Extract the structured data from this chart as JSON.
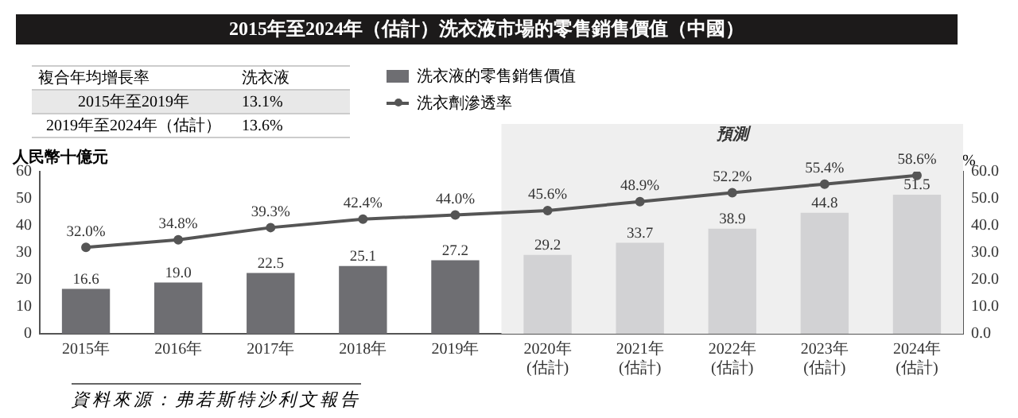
{
  "chart_data": [
    {
      "type": "bar",
      "title": "2015年至2024年（估計）洗衣液市場的零售銷售價值（中國）",
      "categories": [
        "2015年",
        "2016年",
        "2017年",
        "2018年",
        "2019年",
        "2020年\n(估計)",
        "2021年\n(估計)",
        "2022年\n(估計)",
        "2023年\n(估計)",
        "2024年\n(估計)"
      ],
      "series": [
        {
          "name": "洗衣液的零售銷售價值",
          "color": "#6e6e72",
          "colors": [
            "#6e6e72",
            "#6e6e72",
            "#6e6e72",
            "#6e6e72",
            "#6e6e72",
            "#d2d2d4",
            "#d2d2d4",
            "#d2d2d4",
            "#d2d2d4",
            "#d2d2d4"
          ],
          "values": [
            16.6,
            19.0,
            22.5,
            25.1,
            27.2,
            29.2,
            33.7,
            38.9,
            44.8,
            51.5
          ],
          "value_labels": [
            "16.6",
            "19.0",
            "22.5",
            "25.1",
            "27.2",
            "29.2",
            "33.7",
            "38.9",
            "44.8",
            "51.5"
          ]
        },
        {
          "name": "洗衣劑滲透率",
          "type": "line",
          "axis": "y2",
          "color": "#555555",
          "marker": "circle",
          "values": [
            32.0,
            34.8,
            39.3,
            42.4,
            44.0,
            45.6,
            48.9,
            52.2,
            55.4,
            58.6
          ],
          "value_labels": [
            "32.0%",
            "34.8%",
            "39.3%",
            "42.4%",
            "44.0%",
            "45.6%",
            "48.9%",
            "52.2%",
            "55.4%",
            "58.6%"
          ]
        }
      ],
      "ylabel": "人民幣十億元",
      "y2label": "%",
      "ylim": [
        0,
        60
      ],
      "yticks": [
        0,
        10,
        20,
        30,
        40,
        50,
        60
      ],
      "y2lim": [
        0,
        60
      ],
      "y2ticks": [
        {
          "value": 0,
          "label": "0.0"
        },
        {
          "value": 10,
          "label": "10.0"
        },
        {
          "value": 20,
          "label": "20.0"
        },
        {
          "value": 30,
          "label": "30.0"
        },
        {
          "value": 40,
          "label": "40.0"
        },
        {
          "value": 50,
          "label": "50.0"
        },
        {
          "value": 60,
          "label": "60.0"
        }
      ],
      "bands": [
        {
          "axis": "x",
          "from": "2020年\n(估計)",
          "to": "2024年\n(估計)",
          "label": "預測",
          "color": "#efefef"
        }
      ],
      "legend": "top",
      "grid": false,
      "annotations": [
        "資料來源：弗若斯特沙利文報告"
      ]
    },
    {
      "type": "other",
      "annotations": [
        "複合年均增長率",
        "洗衣液",
        "2015年至2019年",
        "13.1%",
        "2019年至2024年（估計）",
        "13.6%"
      ]
    }
  ]
}
